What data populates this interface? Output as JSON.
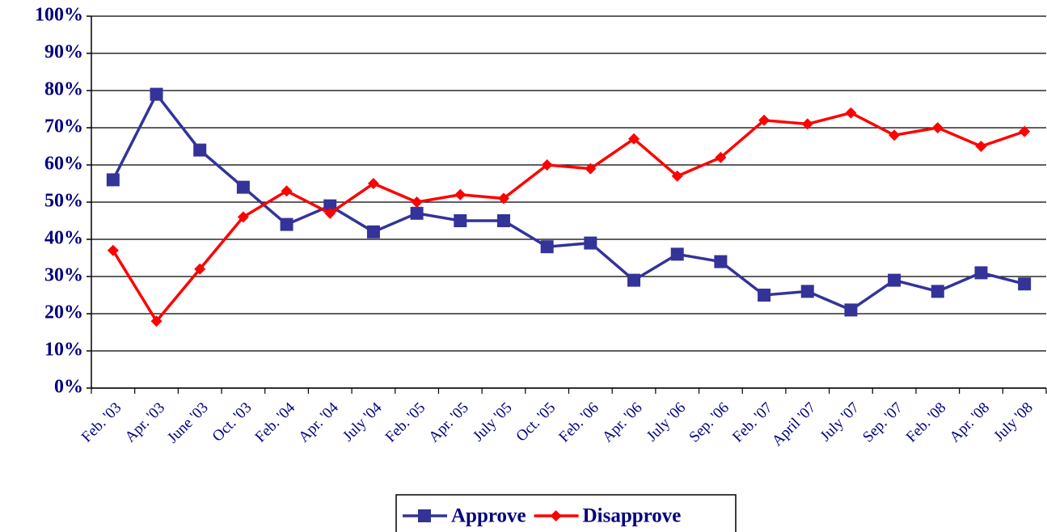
{
  "chart_data": {
    "type": "line",
    "categories": [
      "Feb. '03",
      "Apr. '03",
      "June '03",
      "Oct. '03",
      "Feb. '04",
      "Apr. '04",
      "July '04",
      "Feb. '05",
      "Apr. '05",
      "July '05",
      "Oct. '05",
      "Feb. '06",
      "Apr. '06",
      "July '06",
      "Sep. '06",
      "Feb. '07",
      "April '07",
      "July '07",
      "Sep. '07",
      "Feb. '08",
      "Apr. '08",
      "July '08"
    ],
    "series": [
      {
        "name": "Approve",
        "color": "#333399",
        "values": [
          56,
          79,
          64,
          54,
          44,
          49,
          42,
          47,
          45,
          45,
          38,
          39,
          29,
          36,
          34,
          25,
          26,
          21,
          29,
          26,
          31,
          28
        ]
      },
      {
        "name": "Disapprove",
        "color": "#ff0000",
        "values": [
          37,
          18,
          32,
          46,
          53,
          47,
          55,
          50,
          52,
          51,
          60,
          59,
          67,
          57,
          62,
          72,
          71,
          74,
          68,
          70,
          65,
          69
        ]
      }
    ],
    "ylim": [
      0,
      100
    ],
    "yticks": [
      {
        "value": 0,
        "label": "0%"
      },
      {
        "value": 10,
        "label": "10%"
      },
      {
        "value": 20,
        "label": "20%"
      },
      {
        "value": 30,
        "label": "30%"
      },
      {
        "value": 40,
        "label": "40%"
      },
      {
        "value": 50,
        "label": "50%"
      },
      {
        "value": 60,
        "label": "60%"
      },
      {
        "value": 70,
        "label": "70%"
      },
      {
        "value": 80,
        "label": "80%"
      },
      {
        "value": 90,
        "label": "90%"
      },
      {
        "value": 100,
        "label": "100%"
      }
    ],
    "grid": true,
    "legend": "bottom"
  }
}
